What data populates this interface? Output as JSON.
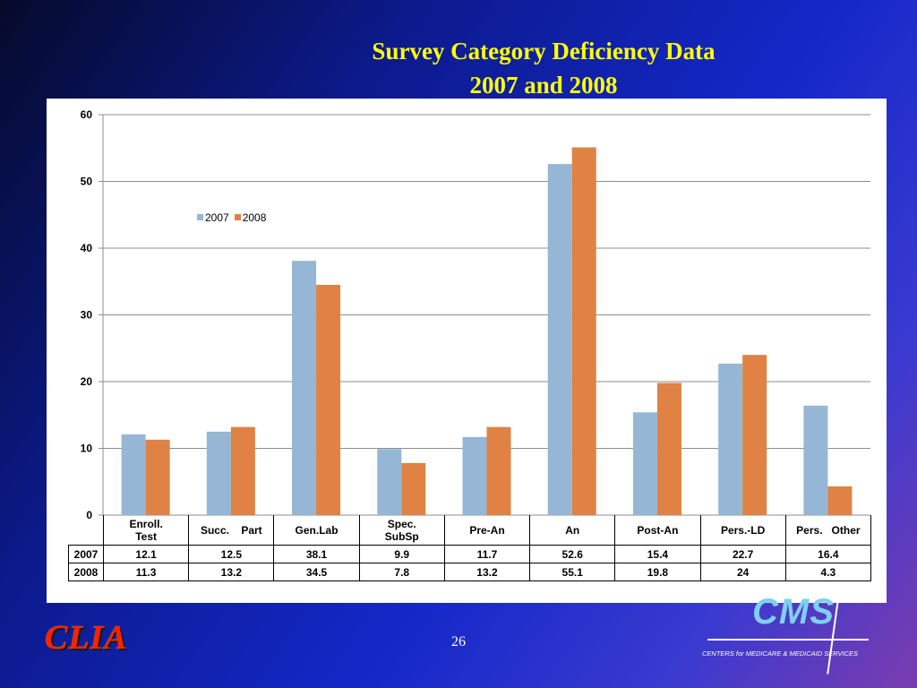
{
  "slide": {
    "title_line1": "Survey Category Deficiency Data",
    "title_line2": "2007 and 2008",
    "page_number": "26",
    "left_logo_text": "CLIA",
    "right_logo_text": "CMS",
    "right_logo_subtext": "CENTERS for MEDICARE & MEDICAID SERVICES"
  },
  "chart_data": {
    "type": "bar",
    "title": "",
    "xlabel": "",
    "ylabel": "",
    "ylim": [
      0,
      60
    ],
    "yticks": [
      0,
      10,
      20,
      30,
      40,
      50,
      60
    ],
    "grid": true,
    "legend_position": "top-left",
    "categories": [
      [
        "Enroll.",
        "Test"
      ],
      [
        "Succ.    Part"
      ],
      [
        "Gen.Lab"
      ],
      [
        "Spec.",
        "SubSp"
      ],
      [
        "Pre-An"
      ],
      [
        "An"
      ],
      [
        "Post-An"
      ],
      [
        "Pers.-LD"
      ],
      [
        "Pers.   Other"
      ]
    ],
    "series": [
      {
        "name": "2007",
        "color": "#95b7d5",
        "values": [
          12.1,
          12.5,
          38.1,
          9.9,
          11.7,
          52.6,
          15.4,
          22.7,
          16.4
        ]
      },
      {
        "name": "2008",
        "color": "#df8244",
        "values": [
          11.3,
          13.2,
          34.5,
          7.8,
          13.2,
          55.1,
          19.8,
          24,
          4.3
        ]
      }
    ]
  }
}
